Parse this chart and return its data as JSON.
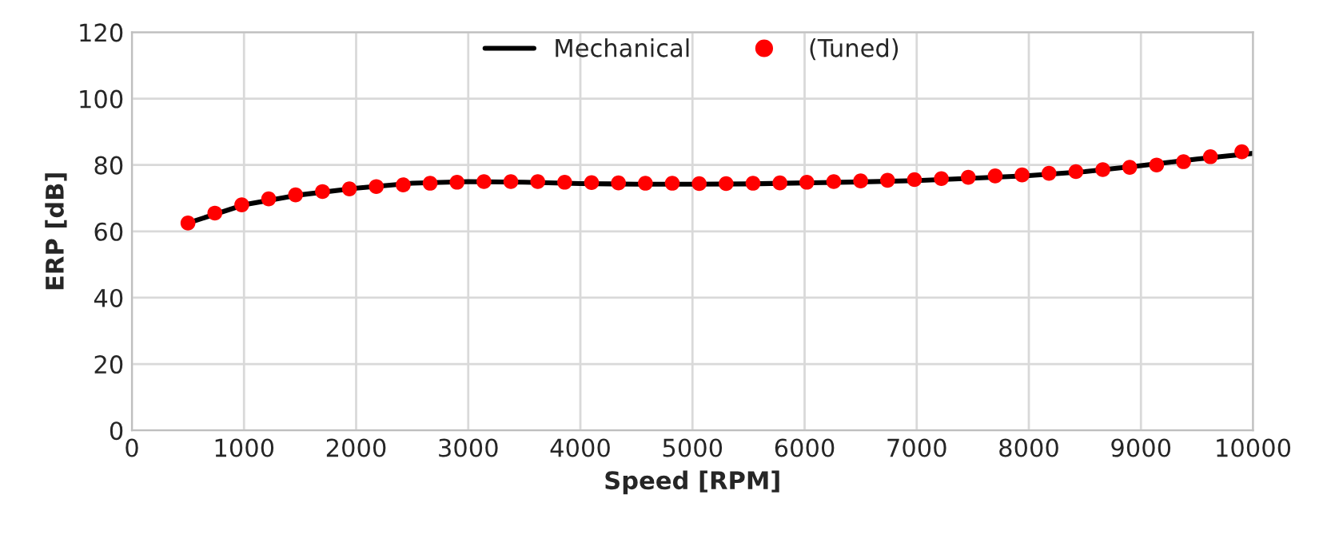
{
  "chart_data": {
    "type": "line",
    "xlabel": "Speed [RPM]",
    "ylabel": "ERP [dB]",
    "xlim": [
      0,
      10000
    ],
    "xticks": [
      0,
      1000,
      2000,
      3000,
      4000,
      5000,
      6000,
      7000,
      8000,
      9000,
      10000
    ],
    "ylim": [
      0,
      120
    ],
    "yticks": [
      0,
      20,
      40,
      60,
      80,
      100,
      120
    ],
    "grid": true,
    "legend": "top",
    "series": [
      {
        "name": "Mechanical",
        "color": "#000000",
        "marker": "none",
        "line_style": "solid",
        "x": [
          500,
          1000,
          1500,
          2000,
          2500,
          3000,
          3500,
          4000,
          4500,
          5000,
          5500,
          6000,
          6500,
          7000,
          7500,
          8000,
          8500,
          9000,
          9500,
          10000
        ],
        "values": [
          62.5,
          68,
          71,
          73,
          74.5,
          75,
          74.8,
          74.4,
          74.2,
          74.2,
          74.3,
          74.6,
          74.9,
          75.3,
          76,
          76.8,
          78,
          79.8,
          81.8,
          83.5
        ]
      },
      {
        "name": "(Tuned)",
        "type": "scatter",
        "color": "#ff0000",
        "marker": "circle",
        "x": [
          500,
          740,
          980,
          1220,
          1460,
          1700,
          1940,
          2180,
          2420,
          2660,
          2900,
          3140,
          3380,
          3620,
          3860,
          4100,
          4340,
          4580,
          4820,
          5060,
          5300,
          5540,
          5780,
          6020,
          6260,
          6500,
          6740,
          6980,
          7220,
          7460,
          7700,
          7940,
          8180,
          8420,
          8660,
          8900,
          9140,
          9380,
          9620,
          9900
        ],
        "values": [
          62.5,
          65.5,
          68,
          69.8,
          71,
          72,
          72.8,
          73.5,
          74,
          74.5,
          74.8,
          75,
          75,
          75,
          74.8,
          74.7,
          74.6,
          74.5,
          74.5,
          74.4,
          74.4,
          74.5,
          74.6,
          74.8,
          75,
          75.2,
          75.4,
          75.6,
          75.9,
          76.3,
          76.7,
          77,
          77.5,
          78,
          78.6,
          79.3,
          80,
          81,
          82.5,
          84
        ]
      }
    ]
  }
}
